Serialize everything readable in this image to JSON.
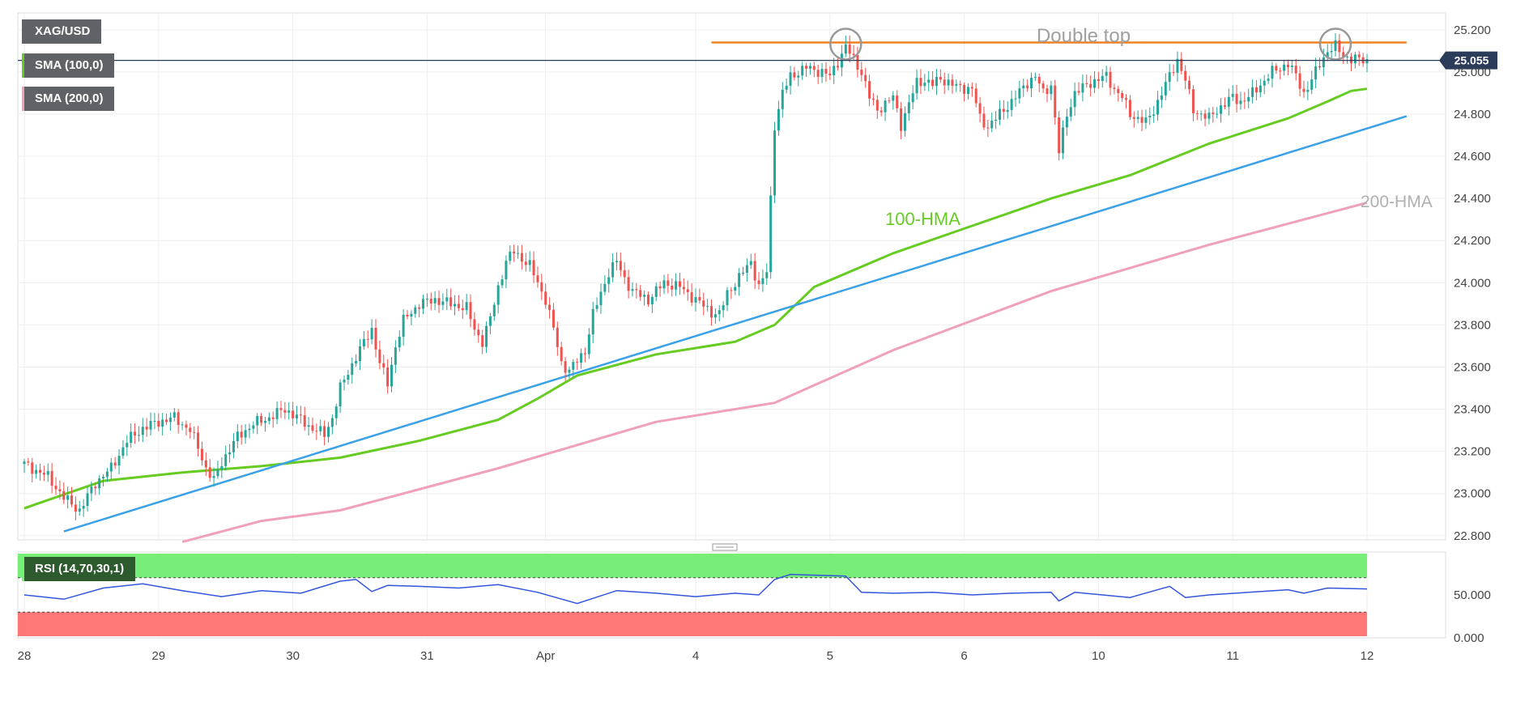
{
  "chart_data": {
    "type": "candlestick",
    "symbol": "XAG/USD",
    "indicators": [
      "SMA (100,0)",
      "SMA (200,0)"
    ],
    "rsi_label": "RSI (14,70,30,1)",
    "last_price": "25.055",
    "y_ticks": [
      "25.200",
      "25.000",
      "24.800",
      "24.600",
      "24.400",
      "24.200",
      "24.000",
      "23.800",
      "23.600",
      "23.400",
      "23.200",
      "23.000",
      "22.800"
    ],
    "y_tick_values": [
      25.2,
      25.0,
      24.8,
      24.6,
      24.4,
      24.2,
      24.0,
      23.8,
      23.6,
      23.4,
      23.2,
      23.0,
      22.8
    ],
    "ylim": [
      22.78,
      25.28
    ],
    "x_ticks": [
      "28",
      "29",
      "30",
      "31",
      "Apr",
      "4",
      "5",
      "6",
      "10",
      "11",
      "12"
    ],
    "rsi_ticks": [
      "50.000",
      "0.000"
    ],
    "rsi_tick_values": [
      50,
      0
    ],
    "rsi_range": [
      0,
      100
    ],
    "rsi_levels": [
      70,
      30
    ],
    "annotations": {
      "double_top": "Double top",
      "hma100": "100-HMA",
      "hma200": "200-HMA"
    },
    "colors": {
      "up": "#26a69a",
      "down": "#ef5350",
      "hma100": "#66cc22",
      "hma200": "#f0a0b8",
      "support": "#3aa0e8",
      "resistance": "#f08020",
      "rsi": "#3355dd",
      "rsi_overbought": "#77ee77",
      "rsi_oversold": "#ff7777"
    },
    "close_series": [
      [
        0,
        23.14
      ],
      [
        3,
        23.08
      ],
      [
        5,
        22.98
      ],
      [
        7,
        22.92
      ],
      [
        9,
        23.05
      ],
      [
        11,
        23.12
      ],
      [
        13,
        23.25
      ],
      [
        15,
        23.31
      ],
      [
        17,
        23.34
      ],
      [
        19,
        23.36
      ],
      [
        21,
        23.3
      ],
      [
        22,
        23.22
      ],
      [
        23,
        23.12
      ],
      [
        24,
        23.06
      ],
      [
        25,
        23.15
      ],
      [
        27,
        23.27
      ],
      [
        29,
        23.33
      ],
      [
        31,
        23.36
      ],
      [
        33,
        23.4
      ],
      [
        35,
        23.35
      ],
      [
        36,
        23.32
      ],
      [
        37,
        23.3
      ],
      [
        38,
        23.28
      ],
      [
        39,
        23.36
      ],
      [
        40,
        23.5
      ],
      [
        42,
        23.65
      ],
      [
        44,
        23.78
      ],
      [
        45,
        23.62
      ],
      [
        46,
        23.52
      ],
      [
        47,
        23.7
      ],
      [
        48,
        23.82
      ],
      [
        50,
        23.9
      ],
      [
        52,
        23.92
      ],
      [
        54,
        23.9
      ],
      [
        56,
        23.88
      ],
      [
        57,
        23.78
      ],
      [
        58,
        23.72
      ],
      [
        59,
        23.83
      ],
      [
        60,
        23.98
      ],
      [
        61,
        24.1
      ],
      [
        62,
        24.15
      ],
      [
        64,
        24.08
      ],
      [
        66,
        23.92
      ],
      [
        67,
        23.78
      ],
      [
        68,
        23.62
      ],
      [
        69,
        23.58
      ],
      [
        71,
        23.68
      ],
      [
        72,
        23.85
      ],
      [
        74,
        24.05
      ],
      [
        75,
        24.1
      ],
      [
        76,
        24.02
      ],
      [
        77,
        23.96
      ],
      [
        79,
        23.92
      ],
      [
        81,
        24.0
      ],
      [
        83,
        23.98
      ],
      [
        85,
        23.92
      ],
      [
        87,
        23.86
      ],
      [
        88,
        23.85
      ],
      [
        89,
        23.95
      ],
      [
        91,
        24.05
      ],
      [
        92,
        24.1
      ],
      [
        93,
        23.98
      ],
      [
        94,
        24.05
      ],
      [
        95,
        24.75
      ],
      [
        96,
        24.9
      ],
      [
        97,
        24.98
      ],
      [
        99,
        25.02
      ],
      [
        101,
        25.0
      ],
      [
        102,
        24.98
      ],
      [
        103,
        25.05
      ],
      [
        104,
        25.12
      ],
      [
        105,
        25.06
      ],
      [
        106,
        25.0
      ],
      [
        107,
        24.88
      ],
      [
        108,
        24.82
      ],
      [
        109,
        24.85
      ],
      [
        110,
        24.88
      ],
      [
        111,
        24.75
      ],
      [
        112,
        24.85
      ],
      [
        113,
        24.95
      ],
      [
        114,
        24.96
      ],
      [
        115,
        24.94
      ],
      [
        116,
        24.97
      ],
      [
        118,
        24.93
      ],
      [
        120,
        24.92
      ],
      [
        121,
        24.78
      ],
      [
        122,
        24.74
      ],
      [
        123,
        24.78
      ],
      [
        125,
        24.86
      ],
      [
        127,
        24.95
      ],
      [
        128,
        24.98
      ],
      [
        129,
        24.9
      ],
      [
        130,
        24.94
      ],
      [
        131,
        24.62
      ],
      [
        132,
        24.8
      ],
      [
        133,
        24.9
      ],
      [
        135,
        24.95
      ],
      [
        137,
        24.98
      ],
      [
        138,
        24.92
      ],
      [
        139,
        24.88
      ],
      [
        140,
        24.8
      ],
      [
        141,
        24.78
      ],
      [
        142,
        24.76
      ],
      [
        143,
        24.82
      ],
      [
        144,
        24.9
      ],
      [
        145,
        24.98
      ],
      [
        146,
        25.06
      ],
      [
        147,
        24.96
      ],
      [
        148,
        24.82
      ],
      [
        149,
        24.8
      ],
      [
        150,
        24.78
      ],
      [
        151,
        24.82
      ],
      [
        152,
        24.85
      ],
      [
        153,
        24.88
      ],
      [
        154,
        24.86
      ],
      [
        155,
        24.88
      ],
      [
        156,
        24.92
      ],
      [
        157,
        24.96
      ],
      [
        158,
        25.0
      ],
      [
        159,
        25.02
      ],
      [
        160,
        25.04
      ],
      [
        161,
        24.98
      ],
      [
        162,
        24.9
      ],
      [
        163,
        24.96
      ],
      [
        164,
        25.04
      ],
      [
        165,
        25.1
      ],
      [
        166,
        25.12
      ],
      [
        167,
        25.08
      ],
      [
        168,
        25.06
      ],
      [
        169,
        25.06
      ],
      [
        170,
        25.055
      ]
    ],
    "hma100_series": [
      [
        0,
        22.93
      ],
      [
        10,
        23.06
      ],
      [
        20,
        23.1
      ],
      [
        30,
        23.13
      ],
      [
        40,
        23.17
      ],
      [
        50,
        23.25
      ],
      [
        60,
        23.35
      ],
      [
        65,
        23.45
      ],
      [
        70,
        23.56
      ],
      [
        80,
        23.66
      ],
      [
        90,
        23.72
      ],
      [
        95,
        23.8
      ],
      [
        100,
        23.98
      ],
      [
        110,
        24.14
      ],
      [
        120,
        24.27
      ],
      [
        130,
        24.4
      ],
      [
        140,
        24.51
      ],
      [
        150,
        24.66
      ],
      [
        160,
        24.78
      ],
      [
        165,
        24.86
      ],
      [
        168,
        24.91
      ],
      [
        170,
        24.92
      ]
    ],
    "hma200_series": [
      [
        20,
        22.77
      ],
      [
        30,
        22.87
      ],
      [
        40,
        22.92
      ],
      [
        50,
        23.02
      ],
      [
        60,
        23.12
      ],
      [
        70,
        23.23
      ],
      [
        80,
        23.34
      ],
      [
        95,
        23.43
      ],
      [
        110,
        23.68
      ],
      [
        130,
        23.96
      ],
      [
        150,
        24.18
      ],
      [
        170,
        24.38
      ]
    ],
    "support_line": [
      [
        5,
        22.82
      ],
      [
        175,
        24.79
      ]
    ],
    "resistance_line": [
      [
        87,
        25.14
      ],
      [
        175,
        25.14
      ]
    ],
    "double_top_markers": [
      [
        104,
        25.14
      ],
      [
        166,
        25.14
      ]
    ],
    "rsi_series": [
      [
        0,
        50
      ],
      [
        5,
        45
      ],
      [
        10,
        58
      ],
      [
        15,
        63
      ],
      [
        20,
        55
      ],
      [
        25,
        48
      ],
      [
        30,
        55
      ],
      [
        35,
        52
      ],
      [
        40,
        66
      ],
      [
        42,
        68
      ],
      [
        44,
        54
      ],
      [
        46,
        61
      ],
      [
        50,
        60
      ],
      [
        55,
        58
      ],
      [
        60,
        62
      ],
      [
        65,
        53
      ],
      [
        70,
        40
      ],
      [
        75,
        55
      ],
      [
        80,
        52
      ],
      [
        85,
        48
      ],
      [
        90,
        52
      ],
      [
        93,
        50
      ],
      [
        95,
        68
      ],
      [
        97,
        74
      ],
      [
        100,
        73
      ],
      [
        104,
        72
      ],
      [
        106,
        53
      ],
      [
        110,
        52
      ],
      [
        115,
        53
      ],
      [
        120,
        50
      ],
      [
        125,
        52
      ],
      [
        130,
        53
      ],
      [
        131,
        43
      ],
      [
        133,
        53
      ],
      [
        140,
        47
      ],
      [
        145,
        60
      ],
      [
        147,
        47
      ],
      [
        150,
        50
      ],
      [
        155,
        53
      ],
      [
        160,
        56
      ],
      [
        162,
        52
      ],
      [
        165,
        58
      ],
      [
        170,
        57
      ]
    ],
    "x_tick_positions": [
      0,
      17,
      34,
      51,
      66,
      85,
      102,
      119,
      136,
      153,
      170
    ]
  }
}
